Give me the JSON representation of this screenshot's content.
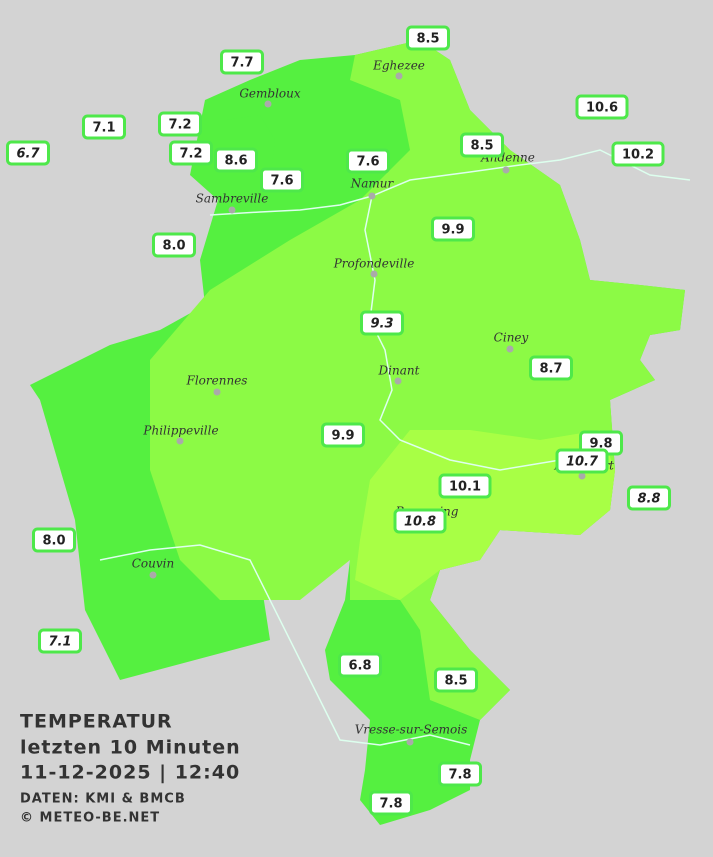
{
  "caption": {
    "title": "TEMPERATUR",
    "subtitle": "letzten 10 Minuten",
    "timestamp": "11-12-2025  |  12:40",
    "source": "DATEN: KMI & BMCB",
    "copyright": "© METEO-BE.NET"
  },
  "cities": [
    "Eghezee",
    "Gembloux",
    "Andenne",
    "Namur",
    "Sambreville",
    "Profondeville",
    "Ciney",
    "Dinant",
    "Florennes",
    "Philippeville",
    "Rochefort",
    "Beauraing",
    "Couvin",
    "Vresse-sur-Semois"
  ],
  "stations": [
    "8.5",
    "7.7",
    "10.6",
    "7.1",
    "7.2",
    "6.7",
    "7.2",
    "8.6",
    "7.6",
    "8.5",
    "10.2",
    "7.6",
    "9.9",
    "8.0",
    "9.3",
    "8.7",
    "9.9",
    "9.8",
    "10.7",
    "10.1",
    "8.8",
    "10.8",
    "8.0",
    "7.1",
    "6.8",
    "8.5",
    "7.8",
    "7.8"
  ]
}
